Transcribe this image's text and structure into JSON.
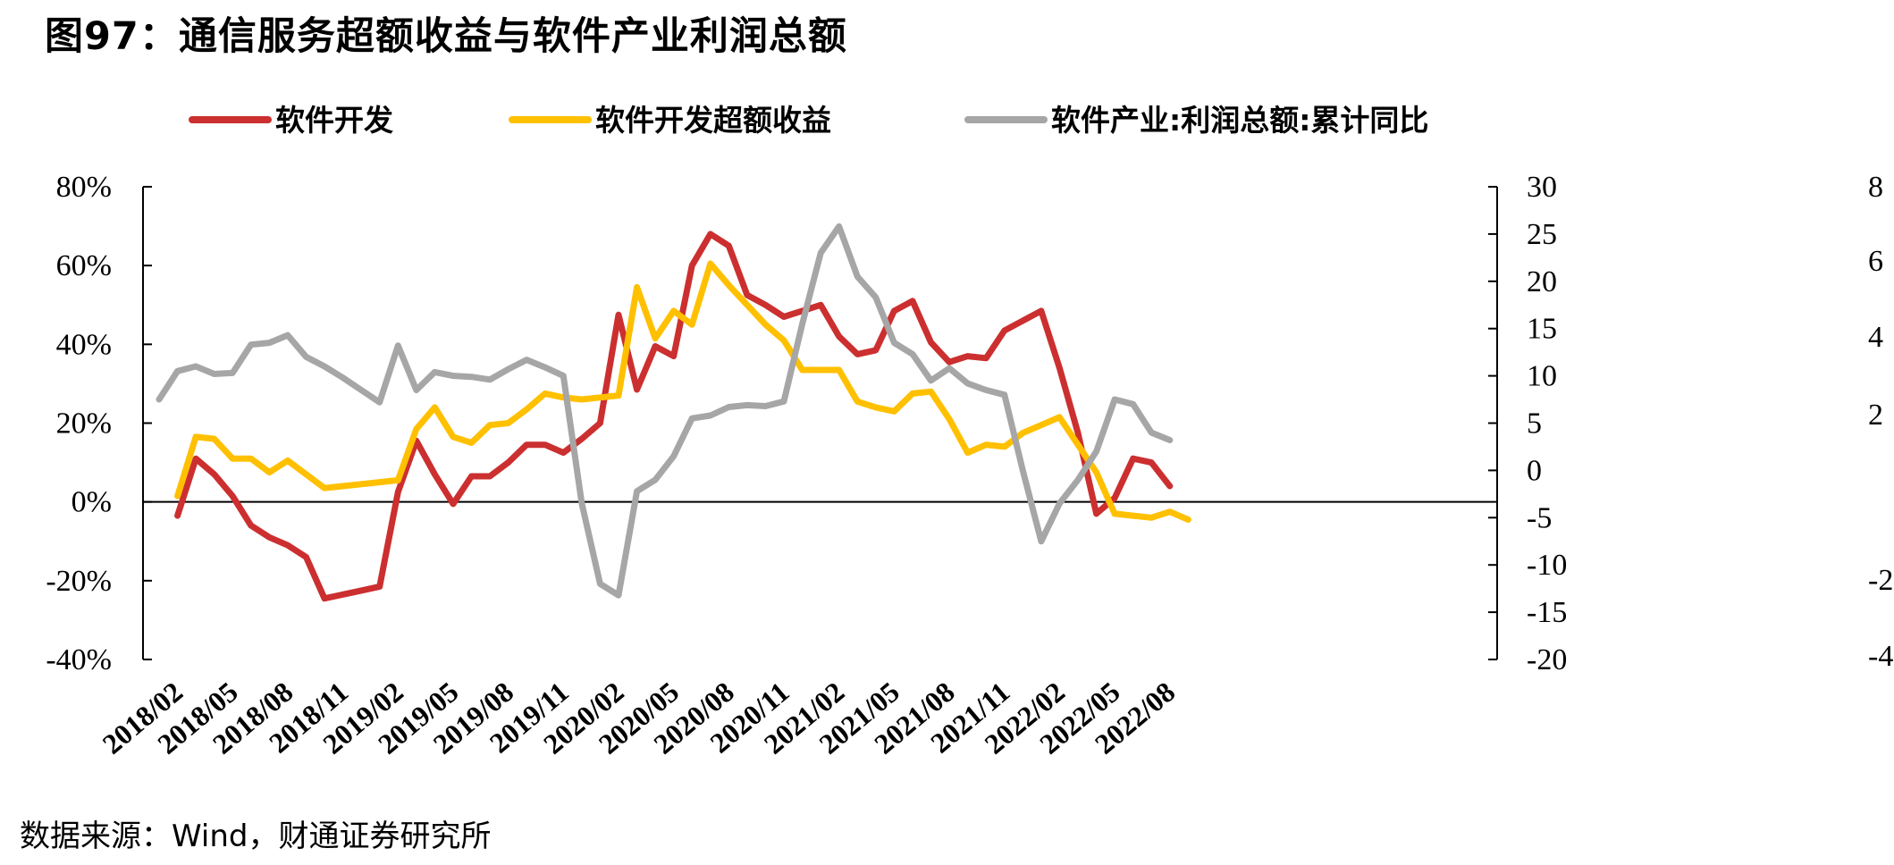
{
  "title": "图97：通信服务超额收益与软件产业利润总额",
  "source": "数据来源：Wind，财通证券研究所",
  "chart_data": {
    "type": "line",
    "legend_position": "top",
    "grid": false,
    "x": [
      "2018/01",
      "2018/02",
      "2018/03",
      "2018/04",
      "2018/05",
      "2018/06",
      "2018/07",
      "2018/08",
      "2018/09",
      "2018/10",
      "2018/11",
      "2018/12",
      "2019/01",
      "2019/02",
      "2019/03",
      "2019/04",
      "2019/05",
      "2019/06",
      "2019/07",
      "2019/08",
      "2019/09",
      "2019/10",
      "2019/11",
      "2019/12",
      "2020/01",
      "2020/02",
      "2020/03",
      "2020/04",
      "2020/05",
      "2020/06",
      "2020/07",
      "2020/08",
      "2020/09",
      "2020/10",
      "2020/11",
      "2020/12",
      "2021/01",
      "2021/02",
      "2021/03",
      "2021/04",
      "2021/05",
      "2021/06",
      "2021/07",
      "2021/08",
      "2021/09",
      "2021/10",
      "2021/11",
      "2021/12",
      "2022/01",
      "2022/02",
      "2022/03",
      "2022/04",
      "2022/05",
      "2022/06",
      "2022/07",
      "2022/08",
      "2022/09"
    ],
    "x_tick_labels": [
      "2018/02",
      "2018/05",
      "2018/08",
      "2018/11",
      "2019/02",
      "2019/05",
      "2019/08",
      "2019/11",
      "2020/02",
      "2020/05",
      "2020/08",
      "2020/11",
      "2021/02",
      "2021/05",
      "2021/08",
      "2021/11",
      "2022/02",
      "2022/05",
      "2022/08"
    ],
    "left_axis": {
      "ylim": [
        -40,
        80
      ],
      "ticks": [
        "80%",
        "60%",
        "40%",
        "20%",
        "0%",
        "-20%",
        "-40%"
      ]
    },
    "right_axis": {
      "ylim": [
        -20,
        30
      ],
      "ticks": [
        "30",
        "25",
        "20",
        "15",
        "10",
        "5",
        "0",
        "-5",
        "-10",
        "-15",
        "-20"
      ]
    },
    "far_right_partial_ticks": [
      "8",
      "6",
      "4",
      "2",
      "-2",
      "-4"
    ],
    "series": [
      {
        "name": "软件开发",
        "color": "#cc2f2f",
        "axis": "left",
        "values": [
          null,
          -3.5,
          11,
          7,
          1.5,
          -6,
          -9,
          -11,
          -14,
          -24.5,
          -23.5,
          -22.5,
          -21.5,
          2.5,
          15.5,
          7,
          -0.5,
          6.5,
          6.5,
          10,
          14.5,
          14.5,
          12.5,
          16,
          20,
          47.5,
          28.5,
          39.5,
          37,
          60,
          68,
          65,
          52.5,
          50,
          47,
          48.5,
          50,
          42,
          37.5,
          38.5,
          48.5,
          51,
          40.5,
          35.5,
          37,
          36.5,
          43.5,
          46,
          48.5,
          34,
          17.5,
          -3,
          1,
          11,
          10,
          4,
          null
        ]
      },
      {
        "name": "软件开发超额收益",
        "color": "#ffc000",
        "axis": "left",
        "values": [
          null,
          1.5,
          16.5,
          16,
          11,
          11,
          7.5,
          10.5,
          7,
          3.5,
          4,
          4.5,
          5,
          5.5,
          18.5,
          24,
          16.5,
          15,
          19.5,
          20,
          23.5,
          27.5,
          26.5,
          26,
          26.5,
          27,
          54.5,
          41.5,
          48.5,
          45,
          60.5,
          55,
          50,
          45,
          41,
          33.5,
          33.5,
          33.5,
          25.5,
          24,
          23,
          27.5,
          28,
          21,
          12.5,
          14.5,
          14,
          17.5,
          19.5,
          21.5,
          14.5,
          7.5,
          -3,
          -3.5,
          -4,
          -2.5,
          -4.5
        ]
      },
      {
        "name": "软件产业:利润总额:累计同比",
        "color": "#a6a6a6",
        "axis": "right",
        "values": [
          7.5,
          10.5,
          11,
          10.2,
          10.3,
          13.3,
          13.5,
          14.3,
          12,
          11,
          9.8,
          8.5,
          7.2,
          13.2,
          8.5,
          10.4,
          10,
          9.9,
          9.6,
          10.7,
          11.7,
          10.9,
          10,
          -3.5,
          -12,
          -13.2,
          -2.2,
          -1,
          1.5,
          5.5,
          5.8,
          6.7,
          6.9,
          6.8,
          7.3,
          15.5,
          23,
          25.8,
          20.5,
          18.3,
          13.5,
          12.3,
          9.5,
          10.8,
          9.2,
          8.5,
          8,
          0,
          -7.5,
          -3.5,
          -1,
          2,
          7.5,
          7,
          4,
          3.2,
          null
        ]
      }
    ]
  }
}
